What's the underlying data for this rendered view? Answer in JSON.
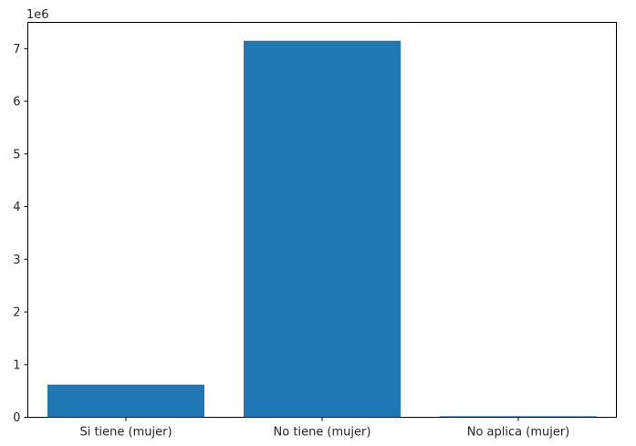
{
  "chart_data": {
    "type": "bar",
    "title": "",
    "xlabel": "",
    "ylabel": "",
    "y_offset_label": "1e6",
    "categories": [
      "Si tiene (mujer)",
      "No tiene (mujer)",
      "No aplica (mujer)"
    ],
    "values": [
      0.62,
      7.15,
      0.02
    ],
    "ylim": [
      0,
      7.5
    ],
    "y_ticks": [
      0,
      1,
      2,
      3,
      4,
      5,
      6,
      7
    ],
    "y_tick_labels": [
      "0",
      "1",
      "2",
      "3",
      "4",
      "5",
      "6",
      "7"
    ],
    "bar_color": "#1f77b4",
    "grid": false,
    "legend": "none"
  }
}
